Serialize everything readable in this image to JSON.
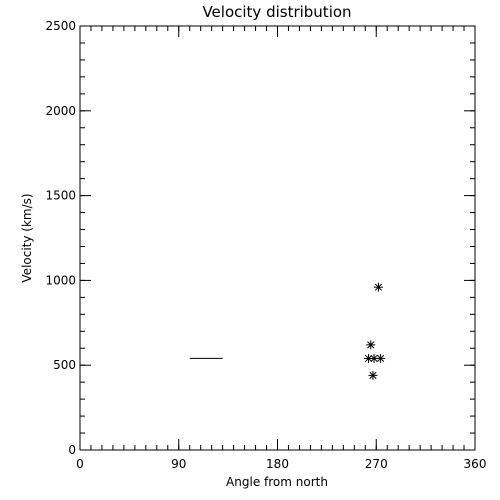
{
  "chart_data": {
    "type": "scatter",
    "title": "Velocity distribution",
    "xlabel": "Angle from north",
    "ylabel": "Velocity (km/s)",
    "xlim": [
      0,
      360
    ],
    "ylim": [
      0,
      2500
    ],
    "x_major_ticks": [
      0,
      90,
      180,
      270,
      360
    ],
    "x_tick_labels": [
      "0",
      "90",
      "180",
      "270",
      "360"
    ],
    "x_minor_step": 10,
    "y_major_ticks": [
      0,
      500,
      1000,
      1500,
      2000,
      2500
    ],
    "y_tick_labels": [
      "0",
      "500",
      "1000",
      "1500",
      "2000",
      "2500"
    ],
    "y_minor_step": 100,
    "grid": false,
    "legend": "none",
    "segments": [
      {
        "x0": 100,
        "x1": 130,
        "y": 540
      }
    ],
    "points": [
      {
        "x": 272,
        "y": 960
      },
      {
        "x": 265,
        "y": 620
      },
      {
        "x": 263,
        "y": 540
      },
      {
        "x": 268,
        "y": 540
      },
      {
        "x": 274,
        "y": 540
      },
      {
        "x": 267,
        "y": 440
      }
    ],
    "marker": "asterisk",
    "color": "#000000"
  }
}
